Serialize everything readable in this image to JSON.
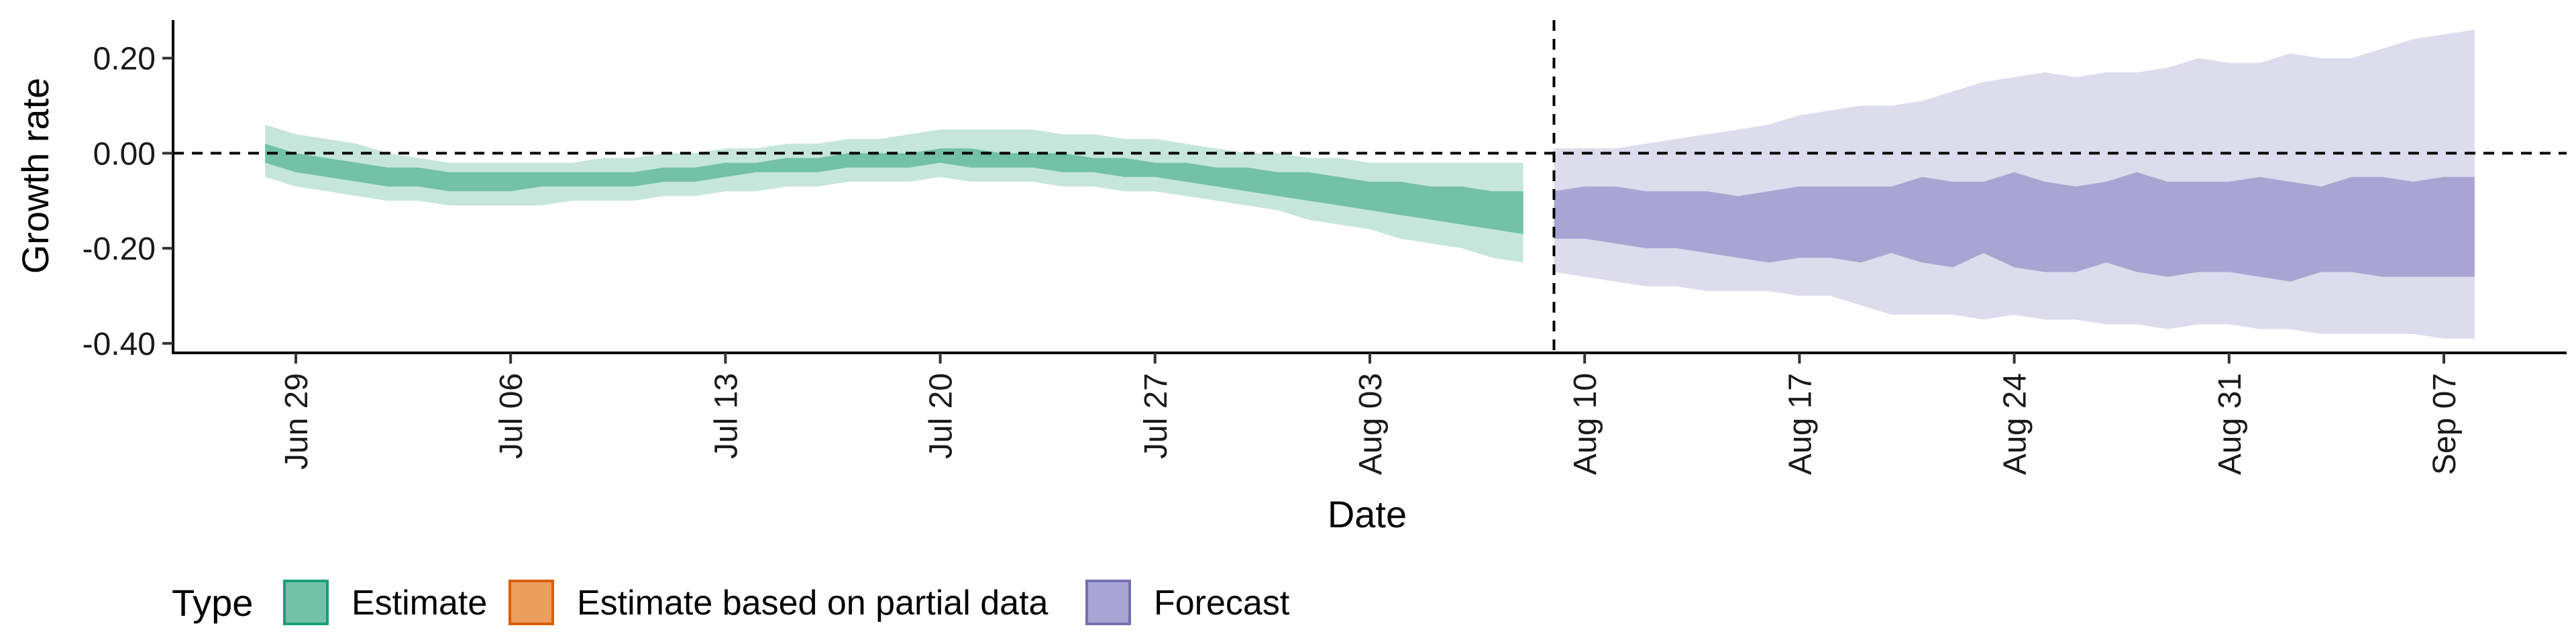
{
  "chart_data": {
    "type": "area",
    "title": "",
    "xlabel": "Date",
    "ylabel": "Growth rate",
    "ylim": [
      -0.42,
      0.28
    ],
    "y_ticks": [
      0.2,
      0.0,
      -0.2,
      -0.4
    ],
    "y_tick_labels": [
      "0.20",
      "0.00",
      "-0.20",
      "-0.40"
    ],
    "x_range": [
      "2020-06-25",
      "2020-09-11"
    ],
    "x_ticks": [
      "2020-06-29",
      "2020-07-06",
      "2020-07-13",
      "2020-07-20",
      "2020-07-27",
      "2020-08-03",
      "2020-08-10",
      "2020-08-17",
      "2020-08-24",
      "2020-08-31",
      "2020-09-07"
    ],
    "x_tick_labels": [
      "Jun 29",
      "Jul 06",
      "Jul 13",
      "Jul 20",
      "Jul 27",
      "Aug 03",
      "Aug 10",
      "Aug 17",
      "Aug 24",
      "Aug 31",
      "Sep 07"
    ],
    "reference_lines": {
      "horizontal_y": 0.0,
      "vertical_date": "2020-08-09",
      "style": "dashed"
    },
    "legend": {
      "title": "Type",
      "position": "bottom-left",
      "entries": [
        {
          "label": "Estimate",
          "fill": "#73c1a7",
          "border": "#1b9e77"
        },
        {
          "label": "Estimate based on partial data",
          "fill": "#eb9e5e",
          "border": "#d95f02"
        },
        {
          "label": "Forecast",
          "fill": "#a9a5d3",
          "border": "#7570b3"
        }
      ]
    },
    "series": [
      {
        "name": "Estimate",
        "inner_color": "#73c1a7",
        "outer_color": "#c6e6dc",
        "x": [
          "2020-06-28",
          "2020-06-29",
          "2020-06-30",
          "2020-07-01",
          "2020-07-02",
          "2020-07-03",
          "2020-07-04",
          "2020-07-05",
          "2020-07-06",
          "2020-07-07",
          "2020-07-08",
          "2020-07-09",
          "2020-07-10",
          "2020-07-11",
          "2020-07-12",
          "2020-07-13",
          "2020-07-14",
          "2020-07-15",
          "2020-07-16",
          "2020-07-17",
          "2020-07-18",
          "2020-07-19",
          "2020-07-20",
          "2020-07-21",
          "2020-07-22",
          "2020-07-23",
          "2020-07-24",
          "2020-07-25",
          "2020-07-26",
          "2020-07-27",
          "2020-07-28",
          "2020-07-29",
          "2020-07-30",
          "2020-07-31",
          "2020-08-01",
          "2020-08-02",
          "2020-08-03",
          "2020-08-04",
          "2020-08-05",
          "2020-08-06",
          "2020-08-07",
          "2020-08-08"
        ],
        "upper_outer": [
          0.06,
          0.04,
          0.03,
          0.02,
          0.0,
          -0.01,
          -0.02,
          -0.02,
          -0.02,
          -0.02,
          -0.02,
          -0.01,
          -0.01,
          0.0,
          0.0,
          0.01,
          0.01,
          0.02,
          0.02,
          0.03,
          0.03,
          0.04,
          0.05,
          0.05,
          0.05,
          0.05,
          0.04,
          0.04,
          0.03,
          0.03,
          0.02,
          0.01,
          0.0,
          0.0,
          -0.01,
          -0.01,
          -0.02,
          -0.02,
          -0.02,
          -0.02,
          -0.02,
          -0.02
        ],
        "upper_inner": [
          0.02,
          0.0,
          -0.01,
          -0.02,
          -0.03,
          -0.03,
          -0.04,
          -0.04,
          -0.04,
          -0.04,
          -0.04,
          -0.04,
          -0.04,
          -0.03,
          -0.03,
          -0.02,
          -0.02,
          -0.01,
          -0.01,
          0.0,
          0.0,
          0.0,
          0.01,
          0.01,
          0.0,
          0.0,
          0.0,
          -0.01,
          -0.01,
          -0.02,
          -0.02,
          -0.03,
          -0.03,
          -0.04,
          -0.04,
          -0.05,
          -0.06,
          -0.06,
          -0.07,
          -0.07,
          -0.08,
          -0.08
        ],
        "lower_inner": [
          -0.02,
          -0.04,
          -0.05,
          -0.06,
          -0.07,
          -0.07,
          -0.08,
          -0.08,
          -0.08,
          -0.07,
          -0.07,
          -0.07,
          -0.07,
          -0.06,
          -0.06,
          -0.05,
          -0.04,
          -0.04,
          -0.04,
          -0.03,
          -0.03,
          -0.03,
          -0.02,
          -0.03,
          -0.03,
          -0.03,
          -0.04,
          -0.04,
          -0.05,
          -0.05,
          -0.06,
          -0.07,
          -0.08,
          -0.09,
          -0.1,
          -0.11,
          -0.12,
          -0.13,
          -0.14,
          -0.15,
          -0.16,
          -0.17
        ],
        "lower_outer": [
          -0.05,
          -0.07,
          -0.08,
          -0.09,
          -0.1,
          -0.1,
          -0.11,
          -0.11,
          -0.11,
          -0.11,
          -0.1,
          -0.1,
          -0.1,
          -0.09,
          -0.09,
          -0.08,
          -0.08,
          -0.07,
          -0.07,
          -0.06,
          -0.06,
          -0.06,
          -0.05,
          -0.06,
          -0.06,
          -0.06,
          -0.07,
          -0.07,
          -0.08,
          -0.08,
          -0.09,
          -0.1,
          -0.11,
          -0.12,
          -0.14,
          -0.15,
          -0.16,
          -0.18,
          -0.19,
          -0.2,
          -0.22,
          -0.23
        ]
      },
      {
        "name": "Forecast",
        "inner_color": "#a9a5d3",
        "outer_color": "#dddcec",
        "x": [
          "2020-08-09",
          "2020-08-10",
          "2020-08-11",
          "2020-08-12",
          "2020-08-13",
          "2020-08-14",
          "2020-08-15",
          "2020-08-16",
          "2020-08-17",
          "2020-08-18",
          "2020-08-19",
          "2020-08-20",
          "2020-08-21",
          "2020-08-22",
          "2020-08-23",
          "2020-08-24",
          "2020-08-25",
          "2020-08-26",
          "2020-08-27",
          "2020-08-28",
          "2020-08-29",
          "2020-08-30",
          "2020-08-31",
          "2020-09-01",
          "2020-09-02",
          "2020-09-03",
          "2020-09-04",
          "2020-09-05",
          "2020-09-06",
          "2020-09-07",
          "2020-09-08"
        ],
        "upper_outer": [
          0.01,
          0.01,
          0.01,
          0.02,
          0.03,
          0.04,
          0.05,
          0.06,
          0.08,
          0.09,
          0.1,
          0.1,
          0.11,
          0.13,
          0.15,
          0.16,
          0.17,
          0.16,
          0.17,
          0.17,
          0.18,
          0.2,
          0.19,
          0.19,
          0.21,
          0.2,
          0.2,
          0.22,
          0.24,
          0.25,
          0.26
        ],
        "upper_inner": [
          -0.08,
          -0.07,
          -0.07,
          -0.08,
          -0.08,
          -0.08,
          -0.09,
          -0.08,
          -0.07,
          -0.07,
          -0.07,
          -0.07,
          -0.05,
          -0.06,
          -0.06,
          -0.04,
          -0.06,
          -0.07,
          -0.06,
          -0.04,
          -0.06,
          -0.06,
          -0.06,
          -0.05,
          -0.06,
          -0.07,
          -0.05,
          -0.05,
          -0.06,
          -0.05,
          -0.05
        ],
        "lower_inner": [
          -0.18,
          -0.18,
          -0.19,
          -0.2,
          -0.2,
          -0.21,
          -0.22,
          -0.23,
          -0.22,
          -0.22,
          -0.23,
          -0.21,
          -0.23,
          -0.24,
          -0.21,
          -0.24,
          -0.25,
          -0.25,
          -0.23,
          -0.25,
          -0.26,
          -0.25,
          -0.25,
          -0.26,
          -0.27,
          -0.25,
          -0.25,
          -0.26,
          -0.26,
          -0.26,
          -0.26
        ],
        "lower_outer": [
          -0.25,
          -0.26,
          -0.27,
          -0.28,
          -0.28,
          -0.29,
          -0.29,
          -0.29,
          -0.3,
          -0.3,
          -0.32,
          -0.34,
          -0.34,
          -0.34,
          -0.35,
          -0.34,
          -0.35,
          -0.35,
          -0.36,
          -0.36,
          -0.37,
          -0.36,
          -0.36,
          -0.37,
          -0.37,
          -0.38,
          -0.38,
          -0.38,
          -0.38,
          -0.39,
          -0.39
        ]
      }
    ]
  }
}
